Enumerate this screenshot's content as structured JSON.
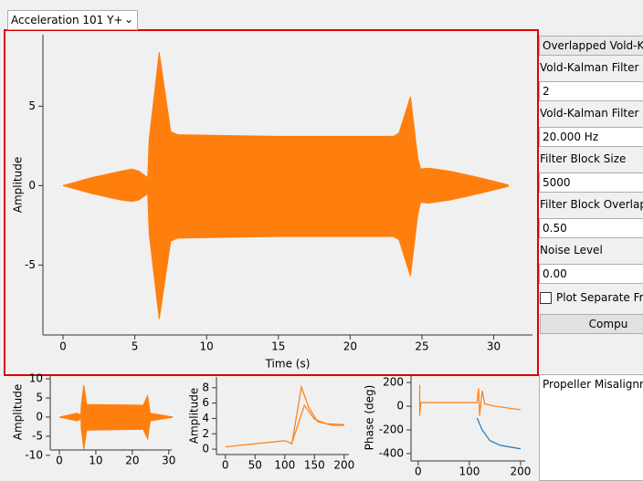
{
  "dropdown": "Acceleration 101 Y+",
  "panel": {
    "mode": "Overlapped Vold-Ka",
    "fields": [
      {
        "label": "Vold-Kalman Filter O",
        "value": "2"
      },
      {
        "label": "Vold-Kalman Filter B",
        "value": "20.000 Hz"
      },
      {
        "label": "Filter Block Size",
        "value": "5000"
      },
      {
        "label": "Filter Block Overlap",
        "value": "0.50"
      },
      {
        "label": "Noise Level",
        "value": "0.00"
      }
    ],
    "checkbox": "Plot Separate Fra",
    "button": "Compu"
  },
  "results": {
    "text": "Propeller Misalignm"
  },
  "chart_data": [
    {
      "type": "area",
      "xlabel": "Time (s)",
      "ylabel": "Amplitude",
      "x": [
        0,
        2,
        4,
        4.8,
        5.3,
        5.9,
        6.0,
        6.7,
        7.5,
        8,
        15,
        23,
        23.4,
        24.2,
        24.7,
        24.9,
        25.5,
        27,
        29,
        31
      ],
      "series": [
        {
          "color": "#ff7f0e",
          "values": [
            0,
            0.5,
            0.9,
            1.05,
            0.9,
            0.5,
            2.9,
            8.4,
            3.4,
            3.2,
            3.1,
            3.1,
            3.3,
            5.6,
            1.8,
            1.05,
            1.1,
            0.9,
            0.5,
            0.05
          ]
        },
        {
          "color": "#ff7f0e",
          "values": [
            0,
            -0.5,
            -0.9,
            -1.0,
            -0.9,
            -0.5,
            -3.0,
            -8.4,
            -3.5,
            -3.3,
            -3.2,
            -3.2,
            -3.4,
            -5.7,
            -1.9,
            -1.05,
            -1.1,
            -0.9,
            -0.5,
            -0.05
          ]
        }
      ],
      "xlim": [
        -1.4,
        32.7
      ],
      "ylim": [
        -9.4,
        9.5
      ],
      "xticks": [
        0,
        5,
        10,
        15,
        20,
        25,
        30
      ],
      "yticks": [
        -5,
        0,
        5
      ]
    },
    {
      "type": "area",
      "ylabel": "Amplitude",
      "x": [
        0,
        4.8,
        5.9,
        6.0,
        6.7,
        7.5,
        23,
        24.2,
        24.9,
        31
      ],
      "series": [
        {
          "color": "#ff7f0e",
          "values": [
            0,
            1.0,
            0.5,
            2.9,
            8.4,
            3.3,
            3.1,
            5.6,
            1.0,
            0.05
          ]
        },
        {
          "color": "#ff7f0e",
          "values": [
            0,
            -1.0,
            -0.5,
            -3.0,
            -8.4,
            -3.4,
            -3.2,
            -5.7,
            -1.0,
            -0.05
          ]
        }
      ],
      "xlim": [
        -2.5,
        30.8
      ],
      "ylim": [
        -8.6,
        11.2
      ],
      "xticks": [
        0,
        10,
        20,
        30
      ],
      "yticks": [
        -10,
        -5,
        0,
        5,
        10
      ]
    },
    {
      "type": "line",
      "ylabel": "Amplitude",
      "series": [
        {
          "color": "#ff7f0e",
          "x": [
            0,
            50,
            100,
            112,
            128,
            140,
            155,
            180,
            200
          ],
          "values": [
            0.3,
            0.7,
            1.1,
            0.7,
            8.1,
            5.5,
            3.6,
            3.1,
            3.1
          ]
        },
        {
          "color": "#ff7f0e",
          "x": [
            112,
            133,
            150,
            170,
            200
          ],
          "values": [
            0.8,
            5.7,
            3.9,
            3.3,
            3.2
          ]
        }
      ],
      "xlim": [
        -15,
        208
      ],
      "ylim": [
        -0.7,
        9.4
      ],
      "xticks": [
        0,
        50,
        100,
        150,
        200
      ],
      "yticks": [
        0,
        2,
        4,
        6,
        8
      ]
    },
    {
      "type": "line",
      "ylabel": "Phase (deg)",
      "series": [
        {
          "color": "#ff7f0e",
          "x": [
            3,
            3,
            5,
            115,
            118,
            120,
            125,
            130,
            150,
            200
          ],
          "values": [
            180,
            -80,
            30,
            30,
            150,
            -80,
            130,
            20,
            0,
            -30
          ]
        },
        {
          "color": "#1f77b4",
          "x": [
            115,
            125,
            140,
            160,
            200
          ],
          "values": [
            -100,
            -200,
            -290,
            -330,
            -360
          ]
        }
      ],
      "xlim": [
        -14,
        209
      ],
      "ylim": [
        -462,
        270
      ],
      "xticks": [
        0,
        100,
        200
      ],
      "yticks": [
        -400,
        -200,
        0,
        200
      ]
    }
  ]
}
